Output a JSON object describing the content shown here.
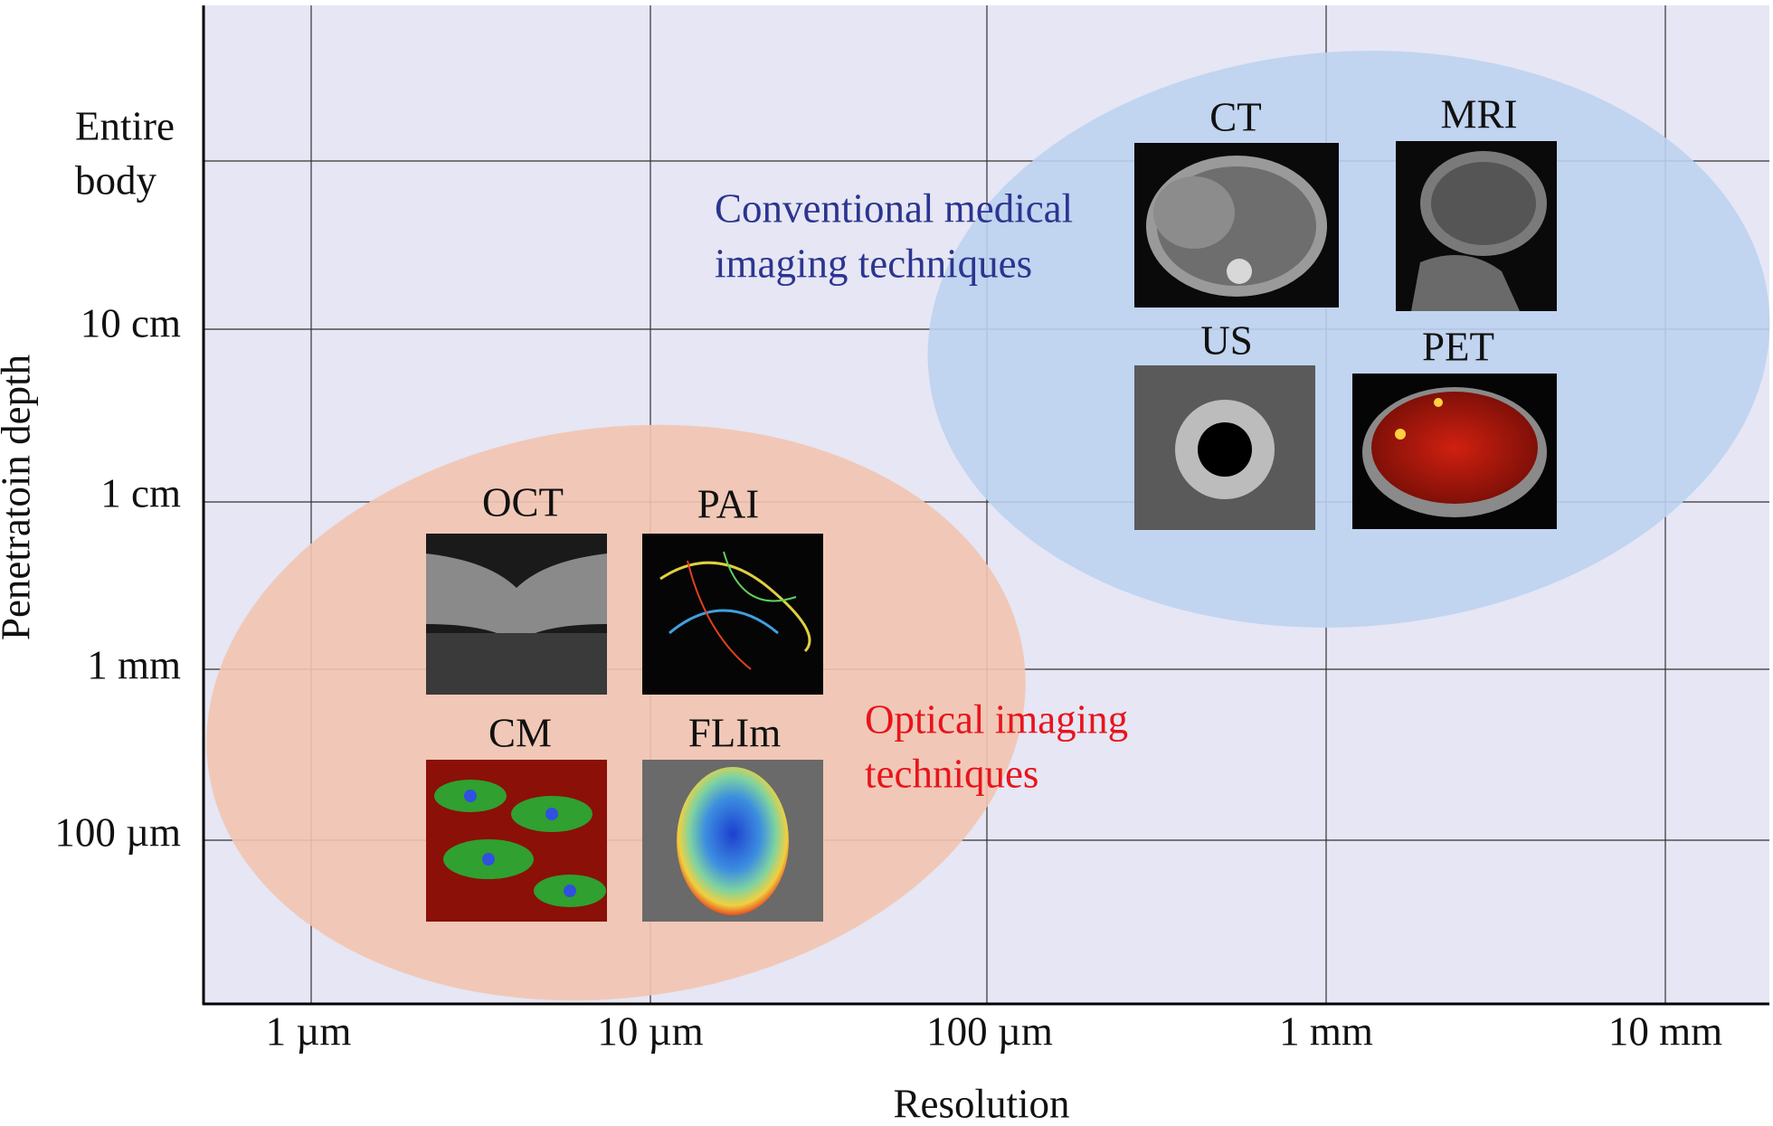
{
  "y_axis": {
    "label": "Penetratoin depth",
    "ticks": [
      [
        "Entire",
        "body"
      ],
      [
        "10 cm"
      ],
      [
        "1 cm"
      ],
      [
        "1 mm"
      ],
      [
        "100 µm"
      ]
    ]
  },
  "x_axis": {
    "label": "Resolution",
    "ticks": [
      "1 µm",
      "10 µm",
      "100 µm",
      "1 mm",
      "10 mm"
    ]
  },
  "regions": [
    {
      "lines": [
        "Conventional medical",
        "imaging techniques"
      ]
    },
    {
      "lines": [
        "Optical imaging",
        "techniques"
      ]
    }
  ],
  "images": [
    "CT",
    "MRI",
    "US",
    "PET",
    "OCT",
    "PAI",
    "CM",
    "FLIm"
  ]
}
